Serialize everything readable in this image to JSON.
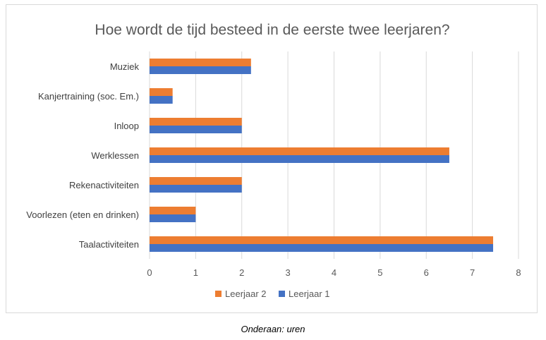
{
  "chart_data": {
    "type": "bar",
    "orientation": "horizontal",
    "title": "Hoe wordt de tijd besteed in de eerste twee leerjaren?",
    "categories": [
      "Muziek",
      "Kanjertraining (soc. Em.)",
      "Inloop",
      "Werklessen",
      "Rekenactiviteiten",
      "Voorlezen (eten en drinken)",
      "Taalactiviteiten"
    ],
    "series": [
      {
        "name": "Leerjaar 2",
        "color": "#ed7d31",
        "values": [
          2.2,
          0.5,
          2,
          6.5,
          2,
          1,
          7.45
        ]
      },
      {
        "name": "Leerjaar 1",
        "color": "#4472c4",
        "values": [
          2.2,
          0.5,
          2,
          6.5,
          2,
          1,
          7.45
        ]
      }
    ],
    "xlim": [
      0,
      8
    ],
    "xticks": [
      "0",
      "1",
      "2",
      "3",
      "4",
      "5",
      "6",
      "7",
      "8"
    ],
    "grid": true,
    "legend_position": "bottom"
  },
  "caption": "Onderaan: uren"
}
